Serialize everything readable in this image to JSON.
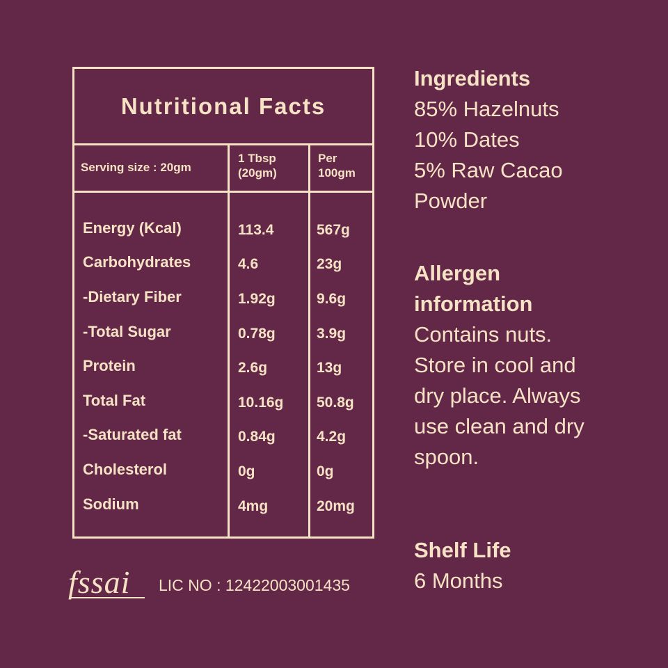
{
  "nutrition": {
    "title": "Nutritional Facts",
    "serving_label": "Serving size : 20gm",
    "col1_header": [
      "1 Tbsp",
      "(20gm)"
    ],
    "col2_header": [
      "Per",
      "100gm"
    ],
    "rows": [
      {
        "name": "Energy (Kcal)",
        "v1": "113.4",
        "v2": "567g"
      },
      {
        "name": "Carbohydrates",
        "v1": "4.6",
        "v2": "23g"
      },
      {
        "name": "-Dietary Fiber",
        "v1": "1.92g",
        "v2": "9.6g"
      },
      {
        "name": "-Total Sugar",
        "v1": "0.78g",
        "v2": "3.9g"
      },
      {
        "name": "Protein",
        "v1": "2.6g",
        "v2": "13g"
      },
      {
        "name": "Total Fat",
        "v1": "10.16g",
        "v2": "50.8g"
      },
      {
        "name": "-Saturated fat",
        "v1": "0.84g",
        "v2": "4.2g"
      },
      {
        "name": "Cholesterol",
        "v1": "0g",
        "v2": "0g"
      },
      {
        "name": "Sodium",
        "v1": "4mg",
        "v2": "20mg"
      }
    ]
  },
  "ingredients": {
    "heading": "Ingredients",
    "lines": [
      "85% Hazelnuts",
      "10% Dates",
      "5% Raw Cacao",
      "Powder"
    ]
  },
  "allergen": {
    "heading": [
      "Allergen",
      "information"
    ],
    "lines": [
      "Contains nuts.",
      "Store in cool and",
      "dry place. Always",
      "use clean and dry",
      "spoon."
    ]
  },
  "shelf_life": {
    "heading": "Shelf Life",
    "value": "6 Months"
  },
  "footer": {
    "logo_text": "fssai",
    "license": "LIC NO : 12422003001435"
  },
  "colors": {
    "background": "#632747",
    "foreground": "#f6e2c4"
  }
}
